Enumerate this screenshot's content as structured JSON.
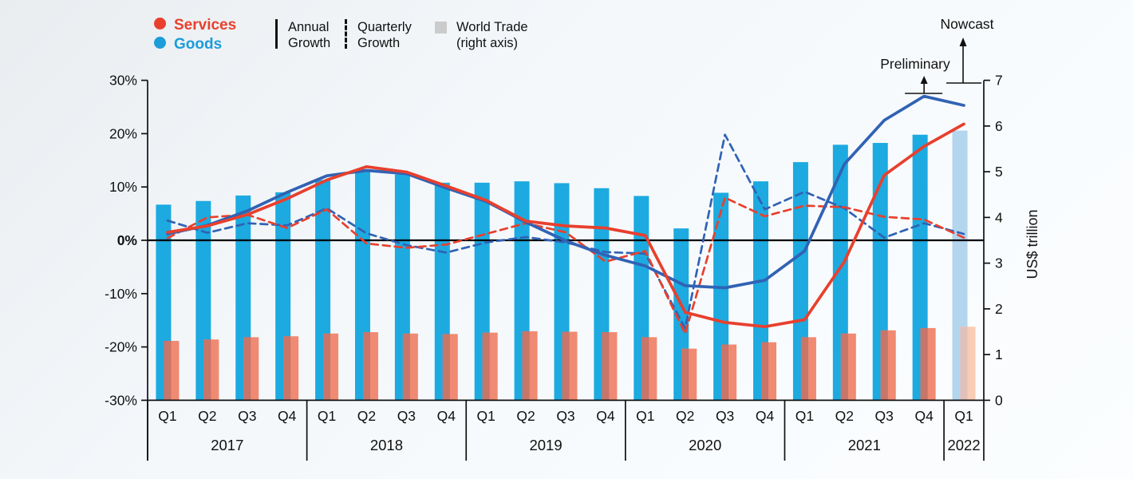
{
  "legend": {
    "services": {
      "label": "Services",
      "color": "#e8402d"
    },
    "goods": {
      "label": "Goods",
      "color": "#1b9dd9"
    },
    "annual": {
      "line1": "Annual",
      "line2": "Growth"
    },
    "quarterly": {
      "line1": "Quarterly",
      "line2": "Growth"
    },
    "world_trade": {
      "line1": "World Trade",
      "line2": "(right axis)",
      "swatch_color": "#cbcbcb"
    }
  },
  "annotations": {
    "preliminary": "Preliminary",
    "nowcast": "Nowcast"
  },
  "chart_data": {
    "type": "bar+line combo",
    "title": "",
    "left_axis": {
      "tick_labels": [
        "30%",
        "20%",
        "10%",
        "0%",
        "-10%",
        "-20%",
        "-30%"
      ],
      "tick_values": [
        30,
        20,
        10,
        0,
        -10,
        -20,
        -30
      ],
      "min": -30,
      "max": 30,
      "zero_line": true
    },
    "right_axis": {
      "label": "US$ trillion",
      "tick_values": [
        7,
        6,
        5,
        4,
        3,
        2,
        1,
        0
      ],
      "min": 0,
      "max": 7
    },
    "years": [
      {
        "label": "2017",
        "quarters": [
          "Q1",
          "Q2",
          "Q3",
          "Q4"
        ]
      },
      {
        "label": "2018",
        "quarters": [
          "Q1",
          "Q2",
          "Q3",
          "Q4"
        ]
      },
      {
        "label": "2019",
        "quarters": [
          "Q1",
          "Q2",
          "Q3",
          "Q4"
        ]
      },
      {
        "label": "2020",
        "quarters": [
          "Q1",
          "Q2",
          "Q3",
          "Q4"
        ]
      },
      {
        "label": "2021",
        "quarters": [
          "Q1",
          "Q2",
          "Q3",
          "Q4"
        ]
      },
      {
        "label": "2022",
        "quarters": [
          "Q1"
        ]
      }
    ],
    "nowcast_index": 20,
    "preliminary_index": 19,
    "series": [
      {
        "name": "World trade in goods (US$ trillion, bars, right axis)",
        "type": "bar",
        "axis": "right",
        "values": [
          4.28,
          4.36,
          4.48,
          4.55,
          4.82,
          5.0,
          4.94,
          4.76,
          4.76,
          4.79,
          4.75,
          4.64,
          4.47,
          3.76,
          4.54,
          4.79,
          5.21,
          5.59,
          5.63,
          5.81,
          5.9
        ]
      },
      {
        "name": "World trade in services (US$ trillion, bars, right axis)",
        "type": "bar",
        "axis": "right",
        "values": [
          1.3,
          1.33,
          1.38,
          1.4,
          1.46,
          1.49,
          1.46,
          1.45,
          1.48,
          1.51,
          1.5,
          1.49,
          1.38,
          1.13,
          1.22,
          1.27,
          1.38,
          1.46,
          1.53,
          1.58,
          1.61
        ]
      },
      {
        "name": "Goods annual growth (%)",
        "type": "line",
        "style": "solid",
        "axis": "left",
        "values": [
          1.2,
          2.8,
          5.5,
          9.0,
          12.1,
          13.1,
          12.5,
          9.8,
          7.3,
          3.4,
          -0.1,
          -2.8,
          -4.8,
          -8.5,
          -8.9,
          -7.5,
          -2.0,
          14.3,
          22.5,
          27.0,
          25.3
        ]
      },
      {
        "name": "Services annual growth (%)",
        "type": "line",
        "style": "solid",
        "axis": "left",
        "values": [
          1.5,
          2.7,
          4.8,
          7.8,
          11.3,
          13.8,
          12.8,
          10.2,
          7.5,
          3.6,
          2.7,
          2.3,
          0.9,
          -13.5,
          -15.4,
          -16.2,
          -14.9,
          -4.0,
          12.2,
          17.6,
          21.8
        ]
      },
      {
        "name": "Goods quarterly growth (%)",
        "type": "line",
        "style": "dashed",
        "axis": "left",
        "values": [
          3.7,
          1.4,
          3.2,
          2.8,
          6.0,
          1.3,
          -0.9,
          -2.3,
          -0.4,
          0.6,
          -0.4,
          -2.2,
          -2.5,
          -16.5,
          19.8,
          5.8,
          9.1,
          6.0,
          0.5,
          3.2,
          1.2
        ]
      },
      {
        "name": "Services quarterly growth (%)",
        "type": "line",
        "style": "dashed",
        "axis": "left",
        "values": [
          0.4,
          4.3,
          4.8,
          2.3,
          5.8,
          -0.6,
          -1.4,
          -0.8,
          1.2,
          3.2,
          1.5,
          -4.0,
          -2.0,
          -17.5,
          8.0,
          4.5,
          6.5,
          6.2,
          4.4,
          3.9,
          0.5
        ]
      }
    ],
    "colors": {
      "goods_bar": "#1caae0",
      "services_bar": "#f08a72",
      "bar_overlap": "#c8756a",
      "goods_bar_nowcast": "#b3d5ee",
      "services_bar_nowcast": "#f8cdb4",
      "bar_overlap_nowcast": "#e2c0ba",
      "goods_line": "#3162b4",
      "services_line": "#e8402d",
      "axis": "#111111"
    }
  }
}
